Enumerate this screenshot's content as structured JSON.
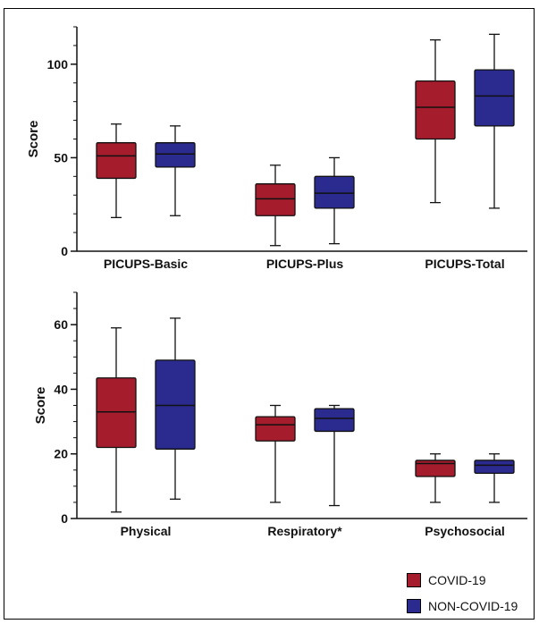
{
  "colors": {
    "covid": "#a51d2d",
    "noncovid": "#2b2a8f",
    "stroke": "#111111"
  },
  "legend": {
    "items": [
      {
        "label": "COVID-19",
        "color": "#a51d2d"
      },
      {
        "label": "NON-COVID-19",
        "color": "#2b2a8f"
      }
    ]
  },
  "chart_data": [
    {
      "type": "boxplot",
      "ylabel": "Score",
      "ylim": [
        0,
        120
      ],
      "yticks": [
        0,
        50,
        100
      ],
      "categories": [
        "PICUPS-Basic",
        "PICUPS-Plus",
        "PICUPS-Total"
      ],
      "series": [
        {
          "name": "COVID-19",
          "boxes": [
            {
              "min": 18,
              "q1": 39,
              "median": 51,
              "q3": 58,
              "max": 68
            },
            {
              "min": 3,
              "q1": 19,
              "median": 28,
              "q3": 36,
              "max": 46
            },
            {
              "min": 26,
              "q1": 60,
              "median": 77,
              "q3": 91,
              "max": 113
            }
          ]
        },
        {
          "name": "NON-COVID-19",
          "boxes": [
            {
              "min": 19,
              "q1": 45,
              "median": 52,
              "q3": 58,
              "max": 67
            },
            {
              "min": 4,
              "q1": 23,
              "median": 31,
              "q3": 40,
              "max": 50
            },
            {
              "min": 23,
              "q1": 67,
              "median": 83,
              "q3": 97,
              "max": 116
            }
          ]
        }
      ]
    },
    {
      "type": "boxplot",
      "ylabel": "Score",
      "ylim": [
        0,
        70
      ],
      "yticks": [
        0,
        20,
        40,
        60
      ],
      "categories": [
        "Physical",
        "Respiratory*",
        "Psychosocial"
      ],
      "series": [
        {
          "name": "COVID-19",
          "boxes": [
            {
              "min": 2,
              "q1": 22,
              "median": 33,
              "q3": 43.5,
              "max": 59
            },
            {
              "min": 5,
              "q1": 24,
              "median": 29,
              "q3": 31.5,
              "max": 35
            },
            {
              "min": 5,
              "q1": 13,
              "median": 17,
              "q3": 18,
              "max": 20
            }
          ]
        },
        {
          "name": "NON-COVID-19",
          "boxes": [
            {
              "min": 6,
              "q1": 21.5,
              "median": 35,
              "q3": 49,
              "max": 62
            },
            {
              "min": 4,
              "q1": 27,
              "median": 31,
              "q3": 34,
              "max": 35
            },
            {
              "min": 5,
              "q1": 14,
              "median": 16.5,
              "q3": 18,
              "max": 20
            }
          ]
        }
      ]
    }
  ]
}
